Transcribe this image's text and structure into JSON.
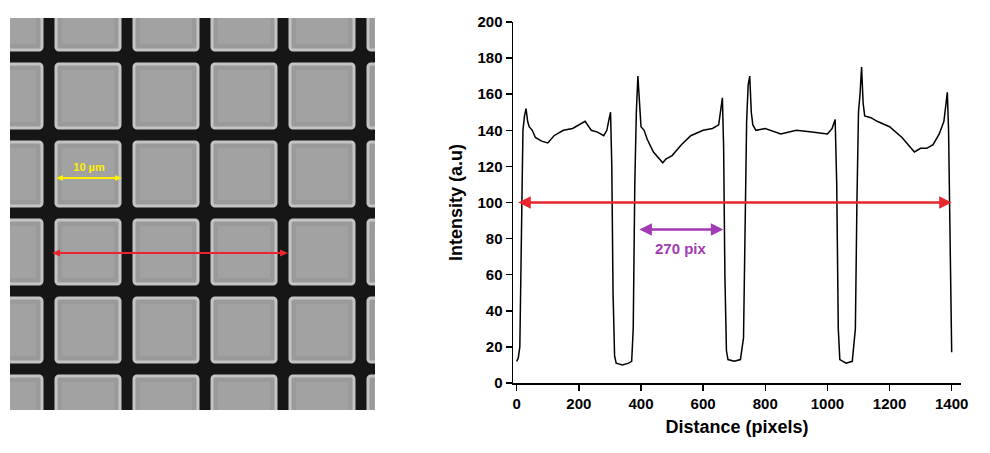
{
  "image": {
    "scale_label": "10 µm"
  },
  "chart_data": {
    "type": "line",
    "x_label": "Distance (pixels)",
    "y_label": "Intensity (a.u)",
    "color": "#000000",
    "x": [
      0,
      5,
      10,
      15,
      20,
      25,
      30,
      35,
      40,
      50,
      60,
      80,
      100,
      120,
      150,
      180,
      200,
      220,
      240,
      260,
      280,
      290,
      297,
      302,
      306,
      310,
      315,
      320,
      340,
      360,
      370,
      375,
      380,
      385,
      390,
      395,
      400,
      410,
      420,
      440,
      460,
      470,
      480,
      500,
      530,
      560,
      600,
      630,
      650,
      658,
      662,
      666,
      670,
      675,
      680,
      700,
      720,
      730,
      735,
      740,
      745,
      750,
      755,
      760,
      770,
      800,
      850,
      900,
      950,
      1000,
      1015,
      1025,
      1030,
      1035,
      1040,
      1060,
      1080,
      1090,
      1095,
      1100,
      1105,
      1110,
      1115,
      1120,
      1140,
      1160,
      1200,
      1240,
      1260,
      1280,
      1300,
      1320,
      1340,
      1360,
      1375,
      1382,
      1386,
      1390,
      1395,
      1400
    ],
    "values": [
      12,
      14,
      20,
      80,
      140,
      148,
      152,
      145,
      142,
      140,
      136,
      134,
      133,
      137,
      140,
      141,
      143,
      145,
      140,
      139,
      137,
      140,
      146,
      150,
      120,
      50,
      15,
      11,
      10,
      11,
      12,
      30,
      110,
      150,
      170,
      155,
      142,
      140,
      135,
      128,
      124,
      122,
      124,
      126,
      132,
      137,
      140,
      141,
      143,
      152,
      158,
      130,
      60,
      18,
      13,
      12,
      13,
      25,
      90,
      145,
      165,
      170,
      150,
      143,
      140,
      141,
      138,
      140,
      139,
      138,
      141,
      146,
      110,
      30,
      13,
      11,
      12,
      30,
      100,
      150,
      160,
      175,
      155,
      148,
      147,
      145,
      142,
      136,
      132,
      128,
      130,
      130,
      132,
      138,
      145,
      155,
      161,
      140,
      60,
      17
    ],
    "xlim": [
      -12,
      1430
    ],
    "ylim": [
      0,
      200
    ],
    "xticks": [
      0,
      200,
      400,
      600,
      800,
      1000,
      1200,
      1400
    ],
    "yticks": [
      0,
      20,
      40,
      60,
      80,
      100,
      120,
      140,
      160,
      180,
      200
    ],
    "grid": false,
    "annotations": [
      {
        "x": [
          0,
          1400
        ],
        "y": 100,
        "color": "#e8262b"
      },
      {
        "x": [
          390,
          665
        ],
        "y": 85,
        "color": "#a33ab5",
        "label": "270 pix"
      }
    ]
  }
}
